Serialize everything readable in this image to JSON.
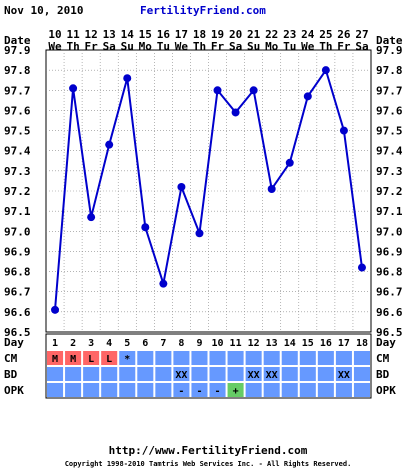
{
  "header": {
    "date": "Nov 10, 2010",
    "brand": "FertilityFriend.com"
  },
  "footer": {
    "url": "http://www.FertilityFriend.com",
    "copyright": "Copyright 1998-2010 Tamtris Web Services Inc. - All Rights Reserved."
  },
  "row_labels": {
    "date": "Date",
    "day": "Day",
    "cm": "CM",
    "bd": "BD",
    "opk": "OPK"
  },
  "colors": {
    "line": "#0000cc",
    "point": "#0000cc",
    "plot_bg": "#ffffff",
    "cm_row": "#6699ff",
    "cm_cell": "#ff6666",
    "opk_positive": "#66cc66",
    "frame": "#000000"
  },
  "chart_data": {
    "type": "line",
    "title": "",
    "xlabel": "",
    "ylabel": "",
    "dates": [
      "10",
      "11",
      "12",
      "13",
      "14",
      "15",
      "16",
      "17",
      "18",
      "19",
      "20",
      "21",
      "22",
      "23",
      "24",
      "25",
      "26",
      "27"
    ],
    "weekdays": [
      "We",
      "Th",
      "Fr",
      "Sa",
      "Su",
      "Mo",
      "Tu",
      "We",
      "Th",
      "Fr",
      "Sa",
      "Su",
      "Mo",
      "Tu",
      "We",
      "Th",
      "Fr",
      "Sa"
    ],
    "days": [
      "1",
      "2",
      "3",
      "4",
      "5",
      "6",
      "7",
      "8",
      "9",
      "10",
      "11",
      "12",
      "13",
      "14",
      "15",
      "16",
      "17",
      "18"
    ],
    "values": [
      96.61,
      97.71,
      97.07,
      97.43,
      97.76,
      97.02,
      96.74,
      97.22,
      96.99,
      97.7,
      97.59,
      97.7,
      97.21,
      97.34,
      97.67,
      97.8,
      97.5,
      96.82
    ],
    "ylim": [
      96.5,
      97.9
    ],
    "yticks": [
      "96.5",
      "96.6",
      "96.7",
      "96.8",
      "96.9",
      "97.0",
      "97.1",
      "97.2",
      "97.3",
      "97.4",
      "97.5",
      "97.6",
      "97.7",
      "97.8",
      "97.9"
    ],
    "grid": true,
    "cm": [
      "M",
      "M",
      "L",
      "L",
      "*",
      "",
      "",
      "",
      "",
      "",
      "",
      "",
      "",
      "",
      "",
      "",
      "",
      ""
    ],
    "bd": [
      "",
      "",
      "",
      "",
      "",
      "",
      "",
      "XX",
      "",
      "",
      "",
      "XX",
      "XX",
      "",
      "",
      "",
      "XX",
      ""
    ],
    "opk": [
      "",
      "",
      "",
      "",
      "",
      "",
      "",
      "-",
      "-",
      "-",
      "+",
      "",
      "",
      "",
      "",
      "",
      "",
      ""
    ]
  }
}
